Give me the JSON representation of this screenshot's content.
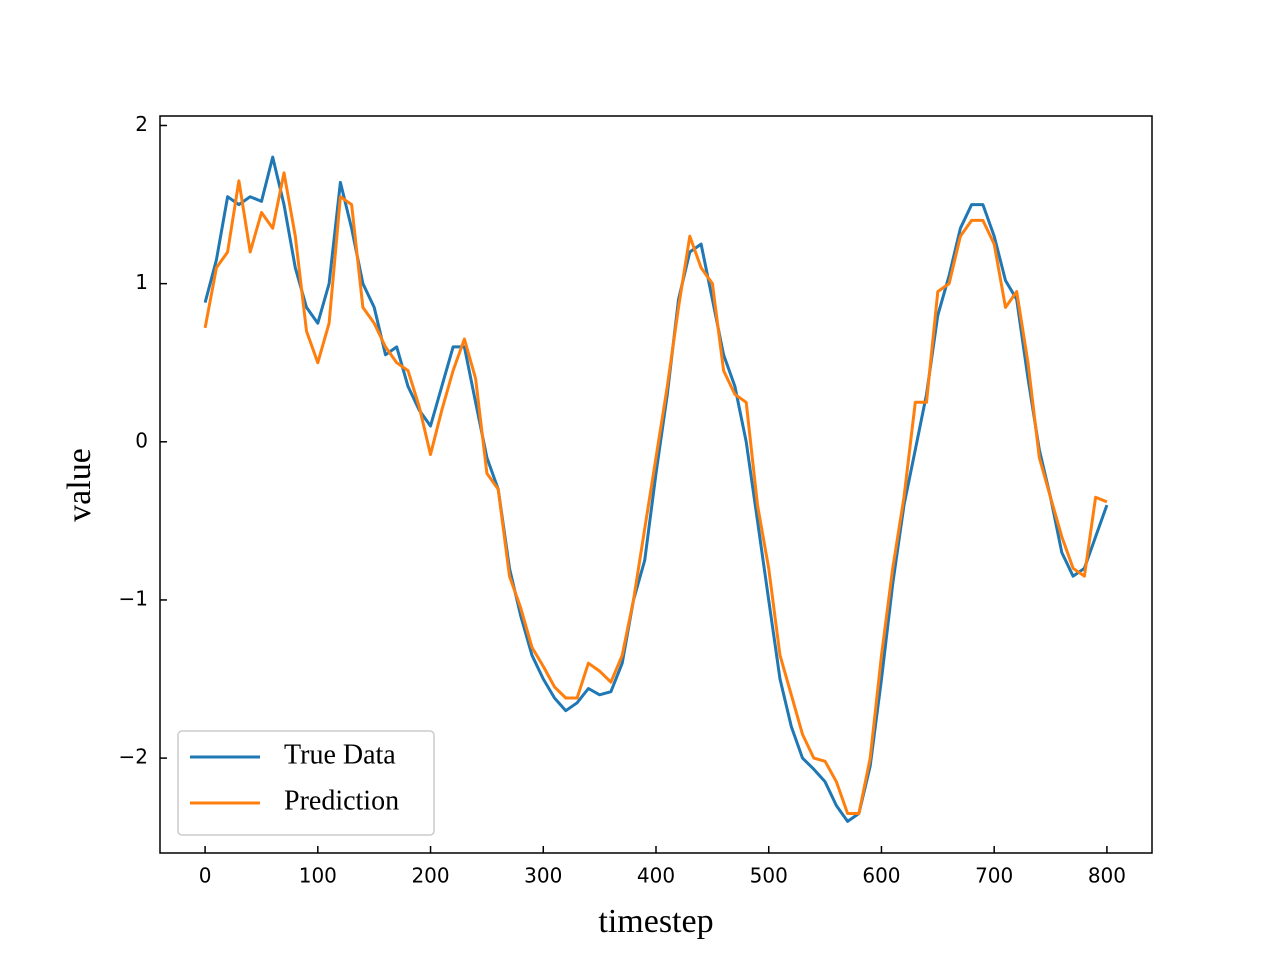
{
  "chart_data": {
    "type": "line",
    "xlabel": "timestep",
    "ylabel": "value",
    "x": [
      0,
      10,
      20,
      30,
      40,
      50,
      60,
      70,
      80,
      90,
      100,
      110,
      120,
      130,
      140,
      150,
      160,
      170,
      180,
      190,
      200,
      210,
      220,
      230,
      240,
      250,
      260,
      270,
      280,
      290,
      300,
      310,
      320,
      330,
      340,
      350,
      360,
      370,
      380,
      390,
      400,
      410,
      420,
      430,
      440,
      450,
      460,
      470,
      480,
      490,
      500,
      510,
      520,
      530,
      540,
      550,
      560,
      570,
      580,
      590,
      600,
      610,
      620,
      630,
      640,
      650,
      660,
      670,
      680,
      690,
      700,
      710,
      720,
      730,
      740,
      750,
      760,
      770,
      780,
      790,
      800
    ],
    "series": [
      {
        "name": "True Data",
        "color": "#1f77b4",
        "values": [
          0.88,
          1.15,
          1.55,
          1.5,
          1.55,
          1.52,
          1.8,
          1.5,
          1.1,
          0.85,
          0.75,
          1.0,
          1.64,
          1.35,
          1.0,
          0.85,
          0.55,
          0.6,
          0.35,
          0.2,
          0.1,
          0.35,
          0.6,
          0.6,
          0.25,
          -0.1,
          -0.3,
          -0.8,
          -1.1,
          -1.35,
          -1.5,
          -1.62,
          -1.7,
          -1.65,
          -1.56,
          -1.6,
          -1.58,
          -1.4,
          -1.0,
          -0.75,
          -0.2,
          0.3,
          0.9,
          1.2,
          1.25,
          0.9,
          0.55,
          0.35,
          0.0,
          -0.5,
          -1.0,
          -1.5,
          -1.8,
          -2.0,
          -2.07,
          -2.15,
          -2.3,
          -2.4,
          -2.35,
          -2.05,
          -1.5,
          -0.9,
          -0.4,
          -0.05,
          0.3,
          0.8,
          1.05,
          1.35,
          1.5,
          1.5,
          1.3,
          1.02,
          0.9,
          0.4,
          -0.05,
          -0.35,
          -0.7,
          -0.85,
          -0.8,
          -0.6,
          -0.4
        ]
      },
      {
        "name": "Prediction",
        "color": "#ff7f0e",
        "values": [
          0.72,
          1.1,
          1.2,
          1.65,
          1.2,
          1.45,
          1.35,
          1.7,
          1.3,
          0.7,
          0.5,
          0.75,
          1.55,
          1.5,
          0.85,
          0.75,
          0.6,
          0.5,
          0.45,
          0.22,
          -0.08,
          0.2,
          0.45,
          0.65,
          0.4,
          -0.2,
          -0.3,
          -0.85,
          -1.05,
          -1.3,
          -1.42,
          -1.55,
          -1.62,
          -1.62,
          -1.4,
          -1.45,
          -1.52,
          -1.35,
          -1.0,
          -0.55,
          -0.1,
          0.35,
          0.85,
          1.3,
          1.1,
          1.0,
          0.45,
          0.3,
          0.25,
          -0.4,
          -0.8,
          -1.35,
          -1.6,
          -1.85,
          -2.0,
          -2.02,
          -2.15,
          -2.35,
          -2.35,
          -2.0,
          -1.35,
          -0.8,
          -0.35,
          0.25,
          0.25,
          0.95,
          1.0,
          1.3,
          1.4,
          1.4,
          1.25,
          0.85,
          0.95,
          0.5,
          -0.1,
          -0.35,
          -0.6,
          -0.8,
          -0.85,
          -0.35,
          -0.38
        ]
      }
    ],
    "xlim": [
      -40,
      840
    ],
    "ylim": [
      -2.6,
      2.06
    ],
    "xticks": [
      0,
      100,
      200,
      300,
      400,
      500,
      600,
      700,
      800
    ],
    "yticks": [
      {
        "value": -2,
        "label": "−2"
      },
      {
        "value": -1,
        "label": "−1"
      },
      0,
      1,
      2
    ],
    "legend": "lower left",
    "grid": false
  }
}
